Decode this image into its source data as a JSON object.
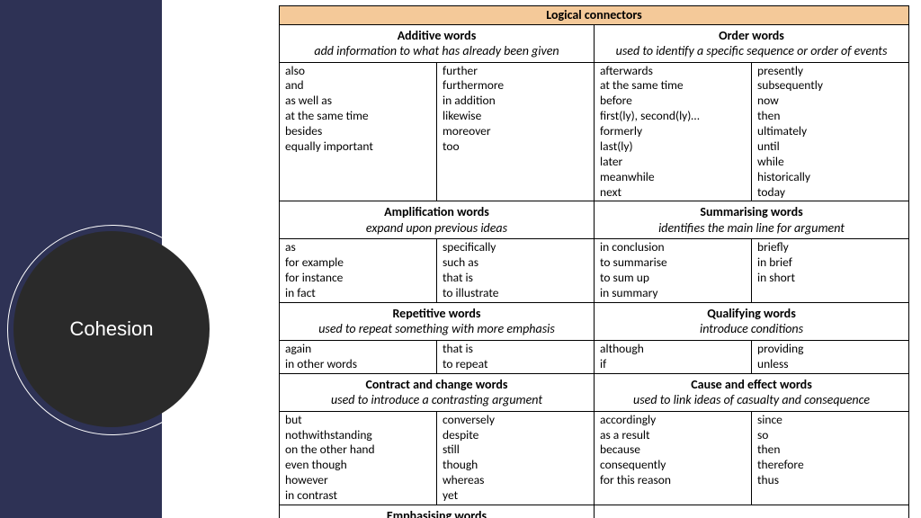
{
  "title_circle": "Cohesion",
  "table_header": "Logical connectors",
  "colors": {
    "leftbar_bg": "#2e3255",
    "circle_fill": "#2a2a2a",
    "circle_text": "#ffffff",
    "header_bg": "#f4c999",
    "border": "#000000",
    "page_bg": "#ffffff"
  },
  "cats": {
    "additive": {
      "title": "Additive words",
      "desc": "add information to what has already been given",
      "col1": [
        "also",
        "and",
        "as well as",
        "at the same time",
        "besides",
        "equally important"
      ],
      "col2": [
        "further",
        "furthermore",
        "in addition",
        "likewise",
        "moreover",
        "too"
      ]
    },
    "order": {
      "title": "Order words",
      "desc": "used to identify a specific sequence or order of events",
      "col1": [
        "afterwards",
        "at the same time",
        "before",
        "first(ly), second(ly)…",
        "formerly",
        "last(ly)",
        "later",
        "meanwhile",
        "next"
      ],
      "col2": [
        "presently",
        "subsequently",
        "now",
        "then",
        "ultimately",
        "until",
        "while",
        "historically",
        "today"
      ]
    },
    "amplification": {
      "title": "Amplification words",
      "desc": "expand upon previous ideas",
      "col1": [
        "as",
        "for example",
        "for instance",
        "in fact"
      ],
      "col2": [
        "specifically",
        "such as",
        "that is",
        "to illustrate"
      ]
    },
    "summarising": {
      "title": "Summarising words",
      "desc": "identifies the main line for argument",
      "col1": [
        "in conclusion",
        "to summarise",
        "to sum up",
        "in summary"
      ],
      "col2": [
        "briefly",
        "in brief",
        "in short"
      ]
    },
    "repetitive": {
      "title": "Repetitive words",
      "desc": "used to repeat something with more emphasis",
      "col1": [
        "again",
        "in other words"
      ],
      "col2": [
        "that is",
        "to repeat"
      ]
    },
    "qualifying": {
      "title": "Qualifying words",
      "desc": "introduce conditions",
      "col1": [
        "although",
        "if"
      ],
      "col2": [
        "providing",
        "unless"
      ]
    },
    "contract": {
      "title": "Contract and change words",
      "desc": "used to introduce a contrasting argument",
      "col1": [
        "but",
        "nothwithstanding",
        "on the other hand",
        "even though",
        "however",
        "in contrast"
      ],
      "col2": [
        "conversely",
        "despite",
        "still",
        "though",
        "whereas",
        "yet"
      ]
    },
    "cause": {
      "title": "Cause and effect words",
      "desc": "used to link ideas of casualty and consequence",
      "col1": [
        "accordingly",
        "as a result",
        "because",
        "consequently",
        "for this reason"
      ],
      "col2": [
        "since",
        "so",
        "then",
        "therefore",
        "thus"
      ]
    },
    "emphasising": {
      "title": "Emphasising words"
    }
  }
}
